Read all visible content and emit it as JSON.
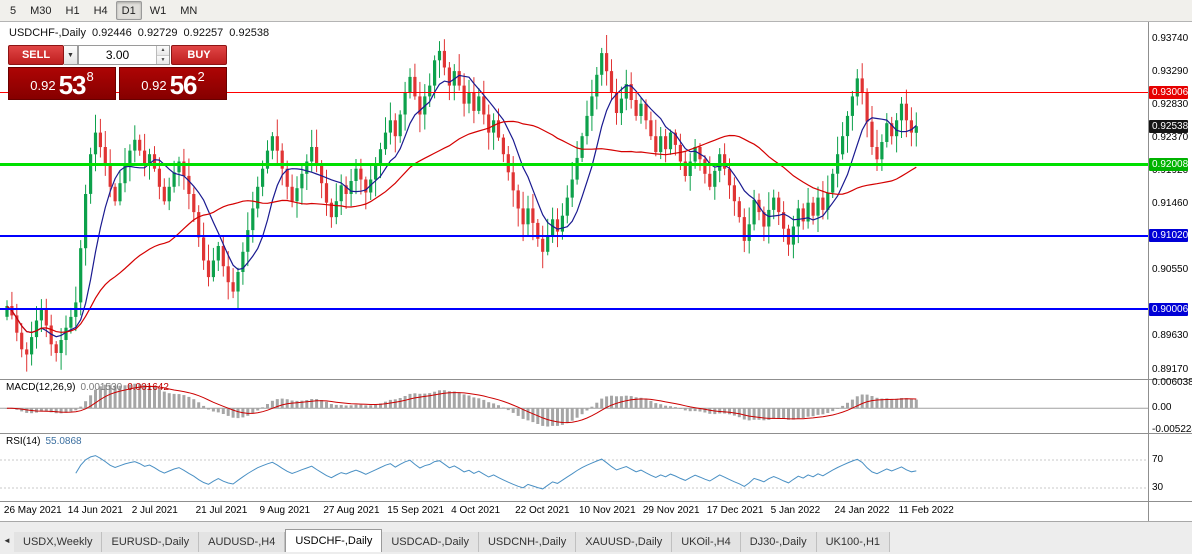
{
  "toolbar": {
    "timeframes": [
      "5",
      "M30",
      "H1",
      "H4",
      "D1",
      "W1",
      "MN"
    ],
    "active": "D1"
  },
  "header": {
    "symbol": "USDCHF-,Daily",
    "ohlc": [
      "0.92446",
      "0.92729",
      "0.92257",
      "0.92538"
    ]
  },
  "trade_panel": {
    "sell_label": "SELL",
    "buy_label": "BUY",
    "volume": "3.00",
    "sell_price": {
      "prefix": "0.92",
      "big": "53",
      "sup": "8"
    },
    "buy_price": {
      "prefix": "0.92",
      "big": "56",
      "sup": "2"
    }
  },
  "price_axis": {
    "ticks": [
      {
        "label": "0.93740",
        "value": 0.9374
      },
      {
        "label": "0.93290",
        "value": 0.9329
      },
      {
        "label": "0.92830",
        "value": 0.9283
      },
      {
        "label": "0.92370",
        "value": 0.9237
      },
      {
        "label": "0.91920",
        "value": 0.9192
      },
      {
        "label": "0.91460",
        "value": 0.9146
      },
      {
        "label": "0.90550",
        "value": 0.9055
      },
      {
        "label": "0.89630",
        "value": 0.8963
      },
      {
        "label": "0.89170",
        "value": 0.8917
      }
    ],
    "badges": [
      {
        "label": "0.93006",
        "value": 0.93006,
        "color": "#e60000"
      },
      {
        "label": "0.92538",
        "value": 0.92538,
        "color": "#151515"
      },
      {
        "label": "0.92008",
        "value": 0.92008,
        "color": "#00b300"
      },
      {
        "label": "0.91020",
        "value": 0.9102,
        "color": "#0000d6"
      },
      {
        "label": "0.90006",
        "value": 0.90006,
        "color": "#0000d6"
      }
    ]
  },
  "hlines": [
    {
      "value": 0.93006,
      "color": "#ff0000",
      "width": 1
    },
    {
      "value": 0.92008,
      "color": "#00e000",
      "width": 3
    },
    {
      "value": 0.9102,
      "color": "#0000ff",
      "width": 2
    },
    {
      "value": 0.90006,
      "color": "#0000ff",
      "width": 2
    }
  ],
  "panels": {
    "macd": {
      "name": "MACD(12,26,9)",
      "value_main": "0.001530",
      "value_signal": "0.001642",
      "axis": [
        {
          "label": "0.006038",
          "value": 0.006038
        },
        {
          "label": "0.00",
          "value": 0
        },
        {
          "label": "-0.005224",
          "value": -0.005224
        }
      ],
      "range": {
        "max": 0.006038,
        "min": -0.005224
      }
    },
    "rsi": {
      "name": "RSI(14)",
      "value": "55.0868",
      "levels": [
        {
          "label": "70",
          "value": 70
        },
        {
          "label": "30",
          "value": 30
        }
      ]
    }
  },
  "tabs": {
    "items": [
      "USDX,Weekly",
      "EURUSD-,Daily",
      "AUDUSD-,H4",
      "USDCHF-,Daily",
      "USDCAD-,Daily",
      "USDCNH-,Daily",
      "XAUUSD-,Daily",
      "UKOil-,H4",
      "DJ30-,Daily",
      "UK100-,H1"
    ],
    "active_index": 3
  },
  "colors": {
    "candle_up": "#0da14b",
    "candle_down": "#e03434",
    "ma_fast": "#1a1a90",
    "ma_slow": "#d40000",
    "macd_hist": "#a6a6a6",
    "macd_signal": "#cc0000",
    "macd_zero": "#a0a0a0",
    "rsi_line": "#4a90c4",
    "rsi_level": "#c8c8c8"
  },
  "chart_data": {
    "type": "candlestick",
    "symbol": "USDCHF-",
    "timeframe": "Daily",
    "ylim": [
      0.8904,
      0.9398
    ],
    "x_tick_labels": [
      "26 May 2021",
      "14 Jun 2021",
      "2 Jul 2021",
      "21 Jul 2021",
      "9 Aug 2021",
      "27 Aug 2021",
      "15 Sep 2021",
      "4 Oct 2021",
      "22 Oct 2021",
      "10 Nov 2021",
      "29 Nov 2021",
      "17 Dec 2021",
      "5 Jan 2022",
      "24 Jan 2022",
      "11 Feb 2022"
    ],
    "x_tick_indices": [
      1,
      14,
      27,
      40,
      53,
      66,
      79,
      92,
      105,
      118,
      131,
      144,
      157,
      170,
      183
    ],
    "closes": [
      0.9005,
      0.8992,
      0.8968,
      0.8945,
      0.8938,
      0.8962,
      0.8985,
      0.9,
      0.8978,
      0.8952,
      0.894,
      0.8958,
      0.8975,
      0.899,
      0.901,
      0.9085,
      0.916,
      0.9215,
      0.9245,
      0.9225,
      0.92,
      0.917,
      0.915,
      0.9175,
      0.92,
      0.922,
      0.9235,
      0.922,
      0.92,
      0.9215,
      0.9195,
      0.917,
      0.915,
      0.917,
      0.919,
      0.9205,
      0.9185,
      0.916,
      0.9135,
      0.91,
      0.9068,
      0.9045,
      0.9068,
      0.9088,
      0.906,
      0.9038,
      0.9025,
      0.9052,
      0.908,
      0.911,
      0.914,
      0.917,
      0.9195,
      0.922,
      0.924,
      0.922,
      0.9195,
      0.917,
      0.915,
      0.9168,
      0.9188,
      0.9205,
      0.9225,
      0.92,
      0.9175,
      0.9148,
      0.9128,
      0.915,
      0.9172,
      0.916,
      0.9178,
      0.9195,
      0.918,
      0.9162,
      0.918,
      0.92,
      0.9222,
      0.9245,
      0.9262,
      0.924,
      0.927,
      0.93,
      0.9322,
      0.9295,
      0.927,
      0.9295,
      0.931,
      0.9345,
      0.9358,
      0.9335,
      0.931,
      0.933,
      0.931,
      0.9285,
      0.93,
      0.9275,
      0.9295,
      0.927,
      0.9245,
      0.9262,
      0.9238,
      0.9215,
      0.919,
      0.9165,
      0.914,
      0.9118,
      0.914,
      0.912,
      0.9098,
      0.908,
      0.9102,
      0.9125,
      0.9108,
      0.913,
      0.9155,
      0.918,
      0.921,
      0.924,
      0.9268,
      0.9295,
      0.9325,
      0.9355,
      0.933,
      0.93,
      0.9272,
      0.9292,
      0.9312,
      0.929,
      0.9268,
      0.9285,
      0.9262,
      0.924,
      0.9218,
      0.924,
      0.9222,
      0.9245,
      0.9228,
      0.9205,
      0.9185,
      0.9205,
      0.9225,
      0.9208,
      0.9188,
      0.917,
      0.9192,
      0.9215,
      0.9195,
      0.9172,
      0.915,
      0.9128,
      0.9095,
      0.9118,
      0.9152,
      0.9135,
      0.9115,
      0.9138,
      0.9155,
      0.9135,
      0.9112,
      0.909,
      0.9115,
      0.914,
      0.9122,
      0.9148,
      0.913,
      0.9155,
      0.9138,
      0.9162,
      0.9188,
      0.9215,
      0.924,
      0.9268,
      0.9295,
      0.932,
      0.93,
      0.926,
      0.9225,
      0.9208,
      0.9232,
      0.9258,
      0.924,
      0.9262,
      0.9285,
      0.9262,
      0.9245,
      0.92538
    ],
    "last_candle": {
      "open": 0.92446,
      "high": 0.92729,
      "low": 0.92257,
      "close": 0.92538
    },
    "moving_averages": [
      {
        "period": 8,
        "color_key": "ma_fast"
      },
      {
        "period": 34,
        "color_key": "ma_slow"
      }
    ],
    "indicators": [
      {
        "type": "macd",
        "params": [
          12,
          26,
          9
        ]
      },
      {
        "type": "rsi",
        "params": [
          14
        ]
      }
    ]
  }
}
